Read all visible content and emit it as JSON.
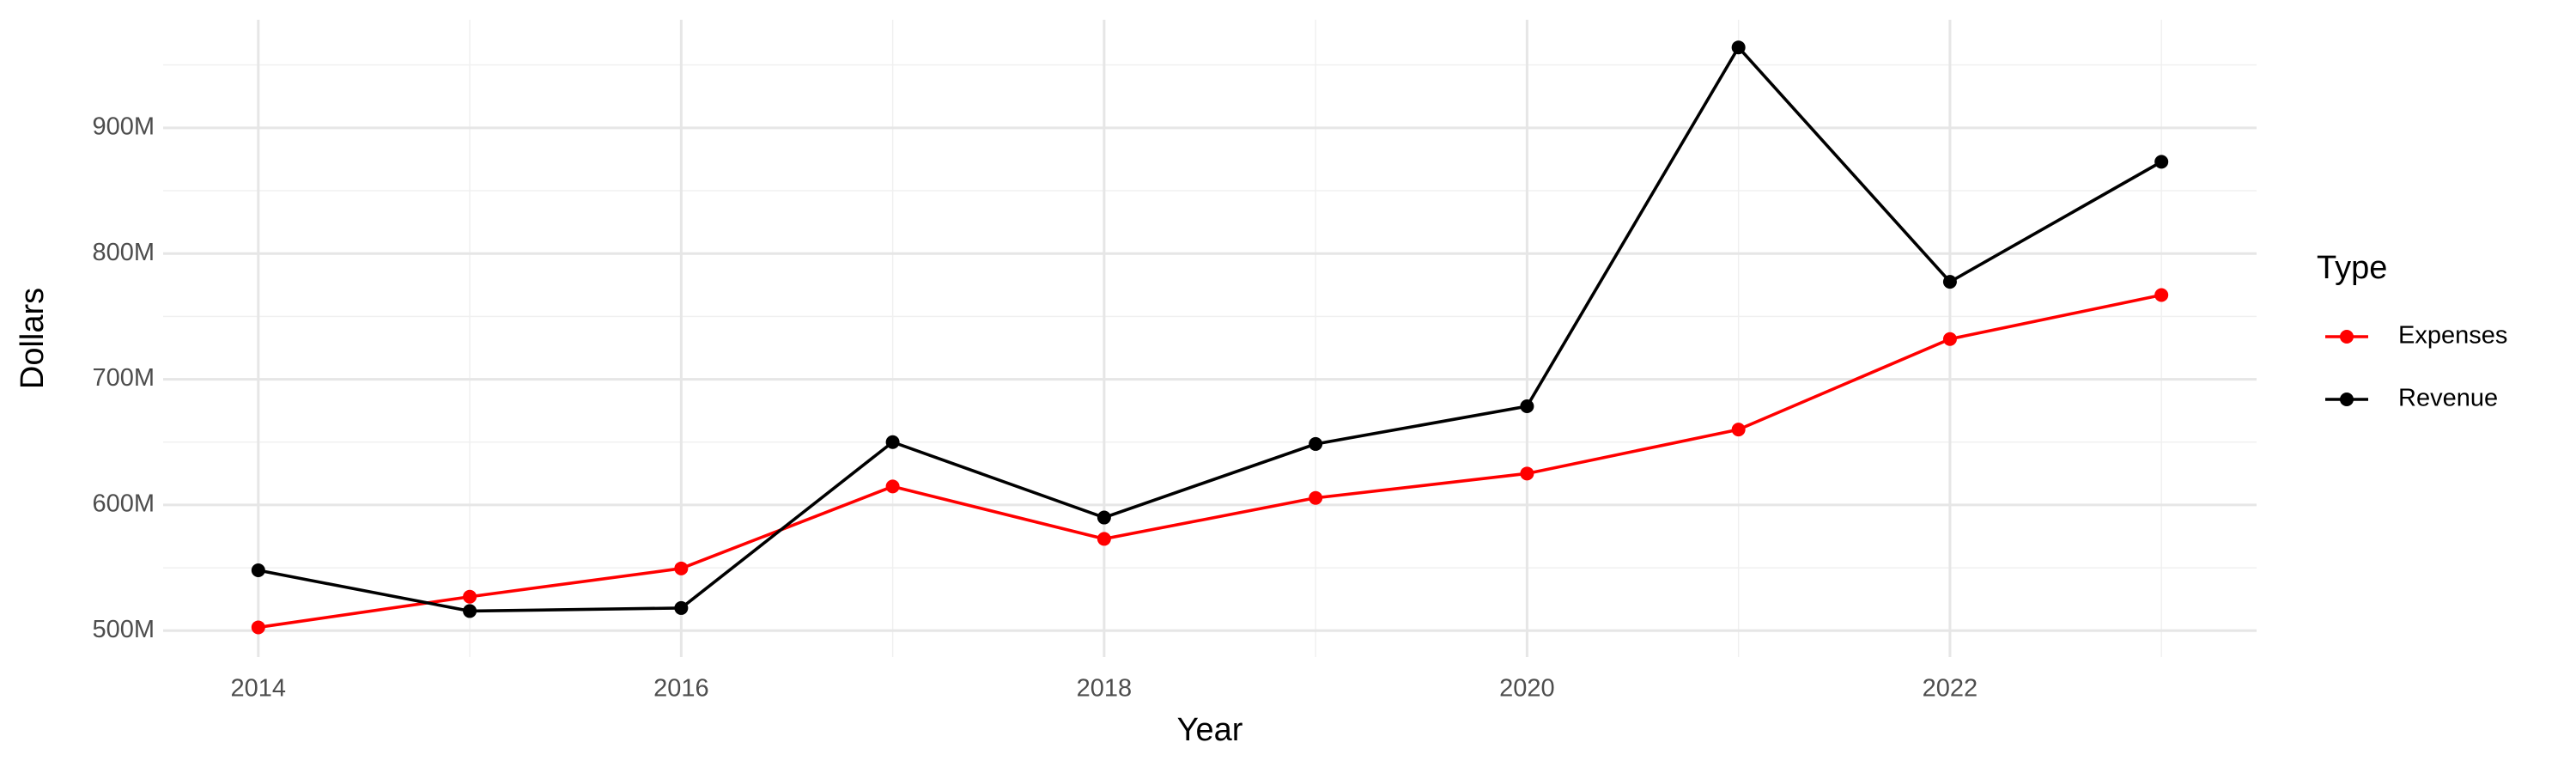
{
  "chart_data": {
    "type": "line",
    "x_label": "Year",
    "y_label": "Dollars",
    "x": [
      2014,
      2015,
      2016,
      2017,
      2018,
      2019,
      2020,
      2021,
      2022,
      2023
    ],
    "series": [
      {
        "name": "Expenses",
        "color": "#ff0000",
        "values": [
          502600000,
          527000000,
          549500000,
          614700000,
          573000000,
          605600000,
          625000000,
          660000000,
          732000000,
          767000000
        ]
      },
      {
        "name": "Revenue",
        "color": "#000000",
        "values": [
          548000000,
          515600000,
          518000000,
          650000000,
          590000000,
          648500000,
          678500000,
          964000000,
          777500000,
          873000000
        ]
      }
    ],
    "xlim": [
      2013.55,
      2023.45
    ],
    "xticks": [
      2014,
      2016,
      2018,
      2020,
      2022
    ],
    "ylim": [
      479000000,
      986000000
    ],
    "yticks": [
      {
        "value": 500000000,
        "label": "500M"
      },
      {
        "value": 600000000,
        "label": "600M"
      },
      {
        "value": 700000000,
        "label": "700M"
      },
      {
        "value": 800000000,
        "label": "800M"
      },
      {
        "value": 900000000,
        "label": "900M"
      }
    ],
    "grid": true,
    "legend_title": "Type",
    "legend_position": "right"
  }
}
